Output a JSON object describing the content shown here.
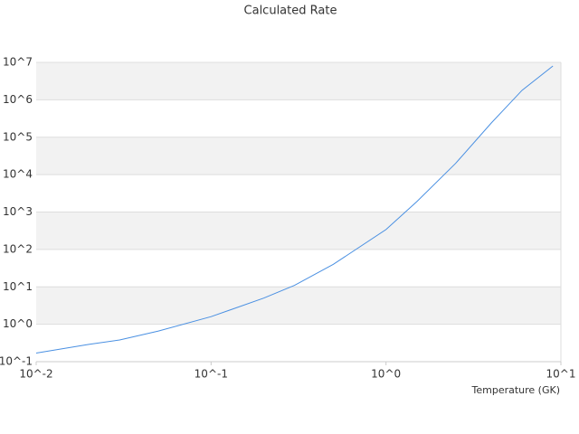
{
  "chart_data": {
    "type": "line",
    "title": "Calculated Rate",
    "x_label": "Temperature (GK)",
    "x": [
      0.01,
      0.02,
      0.03,
      0.05,
      0.1,
      0.2,
      0.3,
      0.5,
      1,
      1.5,
      2.5,
      4,
      6,
      9
    ],
    "series": [
      {
        "name": "Calculated Rate",
        "color": "#4a90e2",
        "values": [
          0.17,
          0.29,
          0.38,
          0.66,
          1.6,
          5,
          11,
          40,
          340,
          1900,
          20000,
          240000,
          1800000,
          8000000
        ]
      }
    ],
    "xlim": [
      0.01,
      10
    ],
    "ylim": [
      0.1,
      10000000
    ],
    "xlog": true,
    "ylog": true,
    "grid": true,
    "band_color": "#f2f2f2",
    "xticks": [
      {
        "value": 0.01,
        "label": "10^-2"
      },
      {
        "value": 0.1,
        "label": "10^-1"
      },
      {
        "value": 1,
        "label": "10^0"
      },
      {
        "value": 10,
        "label": "10^1"
      }
    ],
    "yticks": [
      {
        "value": 0.1,
        "label": "10^-1"
      },
      {
        "value": 1,
        "label": "10^0"
      },
      {
        "value": 10,
        "label": "10^1"
      },
      {
        "value": 100,
        "label": "10^2"
      },
      {
        "value": 1000,
        "label": "10^3"
      },
      {
        "value": 10000,
        "label": "10^4"
      },
      {
        "value": 100000,
        "label": "10^5"
      },
      {
        "value": 1000000,
        "label": "10^6"
      },
      {
        "value": 10000000,
        "label": "10^7"
      }
    ]
  }
}
